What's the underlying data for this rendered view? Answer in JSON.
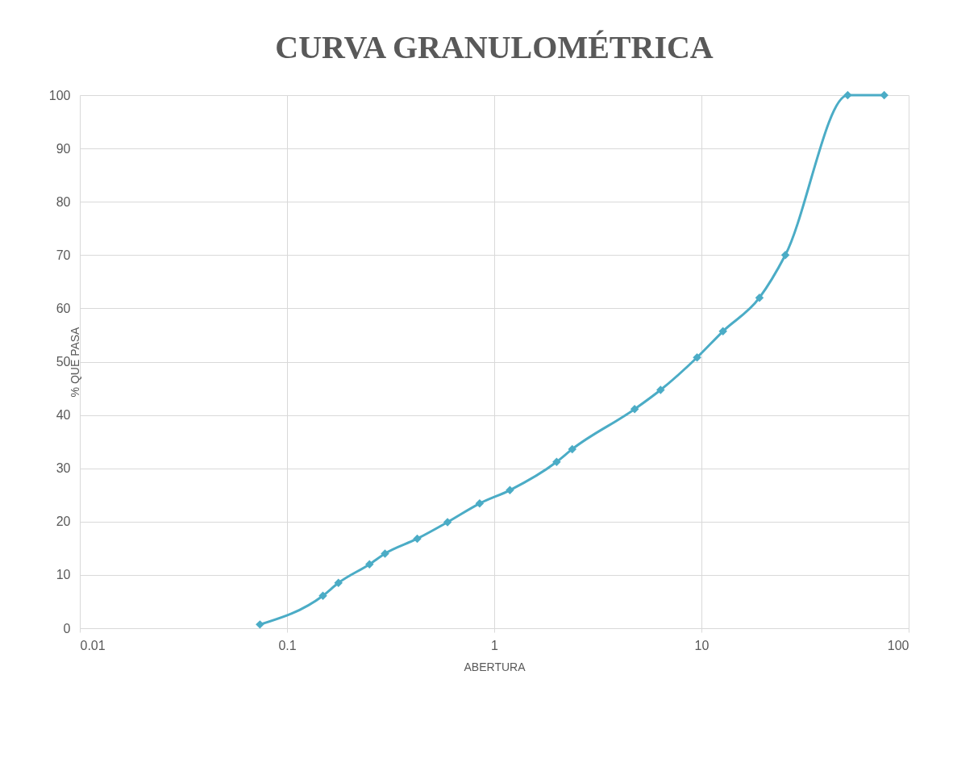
{
  "chart_data": {
    "type": "line",
    "title": "CURVA GRANULOMÉTRICA",
    "xlabel": "ABERTURA",
    "ylabel": "% QUE PASA",
    "x": [
      0.074,
      0.149,
      0.177,
      0.25,
      0.297,
      0.425,
      0.595,
      0.85,
      1.19,
      2.0,
      2.38,
      4.76,
      6.35,
      9.525,
      12.7,
      19.05,
      25.4,
      50.8,
      76.2
    ],
    "series": [
      {
        "color": "#4bacc6",
        "values": [
          0.7,
          6.1,
          8.5,
          12,
          14,
          16.8,
          19.9,
          23.4,
          25.9,
          31.2,
          33.6,
          41.1,
          44.7,
          50.8,
          55.7,
          62,
          70,
          100,
          100
        ]
      }
    ],
    "log": "x",
    "xlim": [
      0.01,
      100
    ],
    "xticks": [
      0.01,
      0.1,
      1,
      10,
      100
    ],
    "ylim": [
      0,
      100
    ],
    "yticks": [
      0,
      10,
      20,
      30,
      40,
      50,
      60,
      70,
      80,
      90,
      100
    ],
    "grid": true,
    "marker": "diamond",
    "line_style": "solid"
  }
}
